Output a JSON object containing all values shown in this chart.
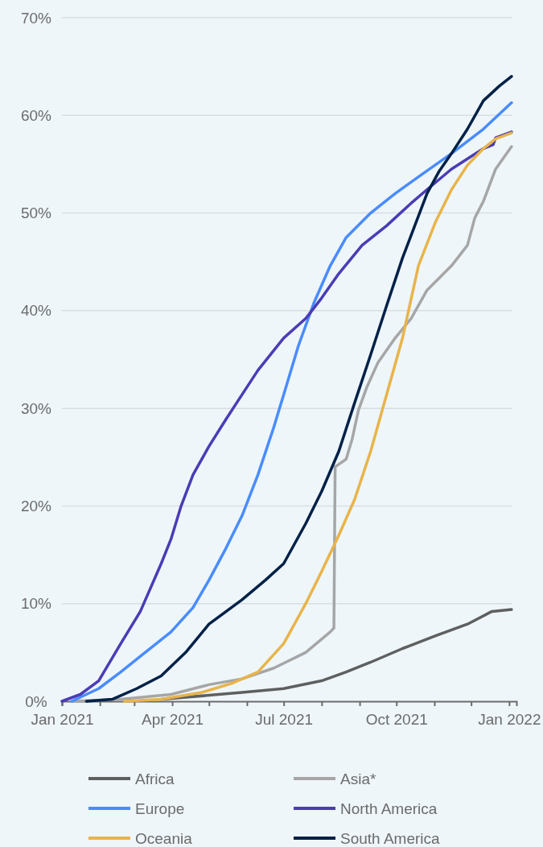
{
  "chart_data": {
    "type": "line",
    "xlim": [
      "2021-01-01",
      "2022-01-07"
    ],
    "xticks": [
      {
        "value": "2021-01-01",
        "label": "Jan 2021"
      },
      {
        "value": "2021-02-01",
        "label": null
      },
      {
        "value": "2021-03-01",
        "label": null
      },
      {
        "value": "2021-04-01",
        "label": "Apr 2021"
      },
      {
        "value": "2021-05-01",
        "label": null
      },
      {
        "value": "2021-06-01",
        "label": null
      },
      {
        "value": "2021-07-01",
        "label": "Jul 2021"
      },
      {
        "value": "2021-08-01",
        "label": null
      },
      {
        "value": "2021-09-01",
        "label": null
      },
      {
        "value": "2021-10-01",
        "label": "Oct 2021"
      },
      {
        "value": "2021-11-01",
        "label": null
      },
      {
        "value": "2021-12-01",
        "label": null
      },
      {
        "value": "2022-01-01",
        "label": "Jan 2022"
      }
    ],
    "ylim": [
      0,
      70
    ],
    "yticks": [
      {
        "value": 0,
        "label": "0%"
      },
      {
        "value": 10,
        "label": "10%"
      },
      {
        "value": 20,
        "label": "20%"
      },
      {
        "value": 30,
        "label": "30%"
      },
      {
        "value": 40,
        "label": "40%"
      },
      {
        "value": 50,
        "label": "50%"
      },
      {
        "value": 60,
        "label": "60%"
      },
      {
        "value": 70,
        "label": "70%"
      }
    ],
    "grid": "y",
    "legend": "bottom",
    "line_style": "solid",
    "marker": "none",
    "series": [
      {
        "name": "Africa",
        "color": "#5f5f5f",
        "x": [
          "2021-03-23",
          "2021-05-28",
          "2021-07-01",
          "2021-08-01",
          "2021-08-21",
          "2021-09-10",
          "2021-10-06",
          "2021-11-02",
          "2021-11-28",
          "2021-12-18",
          "2022-01-03"
        ],
        "values": [
          0.2,
          0.9,
          1.3,
          2.1,
          3.0,
          4.0,
          5.4,
          6.7,
          7.9,
          9.2,
          9.4
        ]
      },
      {
        "name": "Asia*",
        "color": "#a6a6a6",
        "x": [
          "2021-01-09",
          "2021-02-18",
          "2021-03-31",
          "2021-05-01",
          "2021-05-28",
          "2021-06-23",
          "2021-07-19",
          "2021-08-08",
          "2021-08-11",
          "2021-08-12",
          "2021-08-21",
          "2021-08-26",
          "2021-08-31",
          "2021-09-07",
          "2021-09-16",
          "2021-09-30",
          "2021-10-13",
          "2021-10-26",
          "2021-11-15",
          "2021-11-28",
          "2021-12-04",
          "2021-12-11",
          "2021-12-21",
          "2022-01-03"
        ],
        "values": [
          0,
          0.2,
          0.7,
          1.7,
          2.3,
          3.4,
          5.0,
          7.1,
          7.5,
          24.0,
          24.8,
          26.9,
          29.8,
          32.2,
          34.7,
          37.2,
          39.2,
          42.1,
          44.6,
          46.7,
          49.5,
          51.2,
          54.5,
          56.8
        ]
      },
      {
        "name": "Europe",
        "color": "#4a8cff",
        "x": [
          "2021-01-09",
          "2021-01-31",
          "2021-02-18",
          "2021-03-06",
          "2021-03-31",
          "2021-04-18",
          "2021-05-01",
          "2021-05-15",
          "2021-05-28",
          "2021-06-10",
          "2021-06-23",
          "2021-07-01",
          "2021-07-13",
          "2021-07-26",
          "2021-08-08",
          "2021-08-21",
          "2021-09-10",
          "2021-09-30",
          "2021-10-19",
          "2021-11-15",
          "2021-12-11",
          "2022-01-03"
        ],
        "values": [
          0,
          1.3,
          3.0,
          4.6,
          7.1,
          9.6,
          12.4,
          15.7,
          19.0,
          23.2,
          28.1,
          31.4,
          36.4,
          40.9,
          44.6,
          47.5,
          50.0,
          52.0,
          53.7,
          56.1,
          58.6,
          61.3
        ]
      },
      {
        "name": "North America",
        "color": "#4b3cb5",
        "x": [
          "2021-01-01",
          "2021-01-16",
          "2021-01-31",
          "2021-02-18",
          "2021-03-06",
          "2021-03-23",
          "2021-03-31",
          "2021-04-08",
          "2021-04-18",
          "2021-05-01",
          "2021-05-15",
          "2021-05-28",
          "2021-06-10",
          "2021-07-01",
          "2021-07-19",
          "2021-08-01",
          "2021-08-15",
          "2021-09-03",
          "2021-09-23",
          "2021-10-13",
          "2021-10-26",
          "2021-11-15",
          "2021-12-11",
          "2021-12-19",
          "2021-12-21",
          "2022-01-03"
        ],
        "values": [
          0,
          0.7,
          2.1,
          5.9,
          9.2,
          14.1,
          16.6,
          19.9,
          23.2,
          26.1,
          28.9,
          31.4,
          33.9,
          37.2,
          39.2,
          41.3,
          43.8,
          46.7,
          48.7,
          51.0,
          52.4,
          54.5,
          56.6,
          57.0,
          57.7,
          58.3
        ]
      },
      {
        "name": "Oceania",
        "color": "#e8b44a",
        "x": [
          "2021-02-21",
          "2021-03-23",
          "2021-04-25",
          "2021-05-21",
          "2021-06-10",
          "2021-07-01",
          "2021-07-19",
          "2021-08-01",
          "2021-08-15",
          "2021-08-28",
          "2021-09-10",
          "2021-09-23",
          "2021-10-06",
          "2021-10-19",
          "2021-11-02",
          "2021-11-15",
          "2021-11-28",
          "2021-12-11",
          "2021-12-21",
          "2022-01-03"
        ],
        "values": [
          0,
          0.2,
          0.9,
          1.9,
          3.0,
          5.9,
          10.0,
          13.3,
          17.0,
          20.7,
          25.6,
          31.4,
          37.2,
          44.6,
          49.1,
          52.4,
          54.9,
          56.6,
          57.6,
          58.2
        ]
      },
      {
        "name": "South America",
        "color": "#002147",
        "x": [
          "2021-01-21",
          "2021-02-11",
          "2021-03-03",
          "2021-03-23",
          "2021-04-12",
          "2021-05-01",
          "2021-05-28",
          "2021-06-16",
          "2021-07-01",
          "2021-07-19",
          "2021-08-01",
          "2021-08-15",
          "2021-08-28",
          "2021-09-10",
          "2021-09-23",
          "2021-10-06",
          "2021-10-16",
          "2021-10-26",
          "2021-11-05",
          "2021-11-15",
          "2021-11-28",
          "2021-12-11",
          "2021-12-24",
          "2022-01-03"
        ],
        "values": [
          0,
          0.2,
          1.3,
          2.6,
          5.0,
          7.9,
          10.4,
          12.4,
          14.1,
          18.2,
          21.5,
          25.6,
          30.6,
          35.5,
          40.5,
          45.4,
          48.7,
          52.0,
          54.3,
          56.1,
          58.6,
          61.5,
          63.0,
          64.0
        ]
      }
    ]
  }
}
